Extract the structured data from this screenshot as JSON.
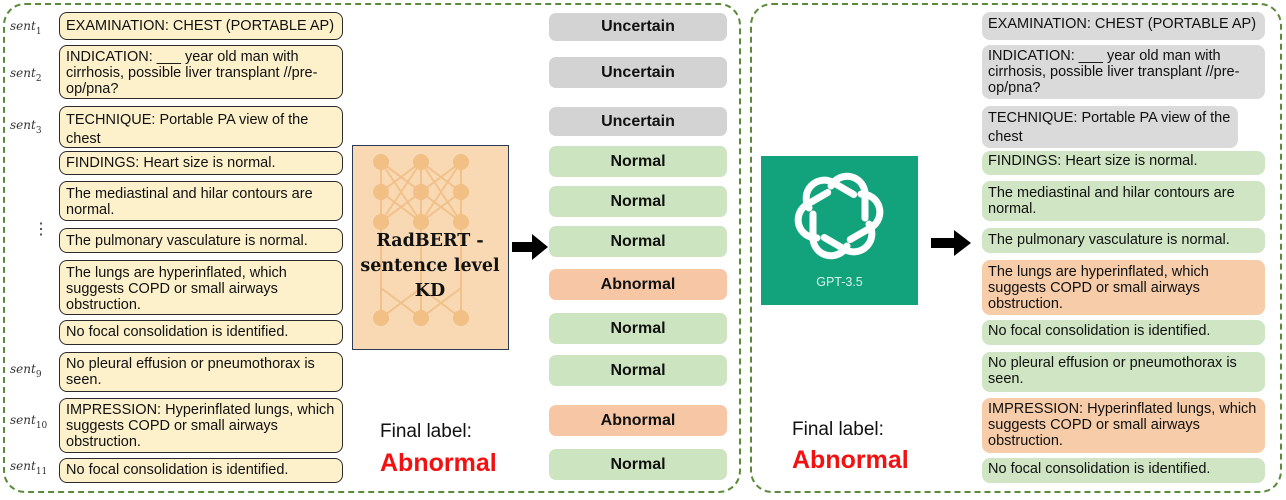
{
  "left_sentences": [
    "EXAMINATION:  CHEST (PORTABLE AP)",
    "INDICATION:  ___ year old man with cirrhosis, possible liver transplant //pre-op/pna?",
    "TECHNIQUE:  Portable PA view of the chest",
    "FINDINGS: Heart size is normal.",
    "The mediastinal and hilar contours are normal.",
    "The pulmonary vasculature is normal.",
    "The lungs are hyperinflated, which suggests COPD or small airways obstruction.",
    "No focal consolidation is identified.",
    "No pleural effusion or pneumothorax is seen.",
    "IMPRESSION: Hyperinflated lungs, which suggests COPD or small airways obstruction.",
    "No focal consolidation is identified."
  ],
  "sentence_ids": [
    {
      "base": "sent",
      "sub": "1"
    },
    {
      "base": "sent",
      "sub": "2"
    },
    {
      "base": "sent",
      "sub": "3"
    },
    {
      "base": "sent",
      "sub": "9"
    },
    {
      "base": "sent",
      "sub": "10"
    },
    {
      "base": "sent",
      "sub": "11"
    }
  ],
  "vertical_dots": "⋮",
  "model_name": "RadBERT - sentence level KD",
  "sentence_labels": [
    "Uncertain",
    "Uncertain",
    "Uncertain",
    "Normal",
    "Normal",
    "Normal",
    "Abnormal",
    "Normal",
    "Normal",
    "Abnormal",
    "Normal"
  ],
  "left_final": {
    "caption": "Final label:",
    "value": "Abnormal"
  },
  "gpt_logo_name": "GPT-3.5",
  "right_sentences": [
    {
      "text": "EXAMINATION:  CHEST (PORTABLE AP)",
      "label": "Uncertain"
    },
    {
      "text": "INDICATION:  ___ year old man with cirrhosis, possible liver transplant //pre-op/pna?",
      "label": "Uncertain"
    },
    {
      "text": "TECHNIQUE:  Portable PA view of the chest",
      "label": "Uncertain"
    },
    {
      "text": "FINDINGS: Heart size is normal.",
      "label": "Normal"
    },
    {
      "text": "The mediastinal and hilar contours are normal.",
      "label": "Normal"
    },
    {
      "text": "The pulmonary vasculature is normal.",
      "label": "Normal"
    },
    {
      "text": "The lungs are hyperinflated, which suggests COPD or small airways obstruction.",
      "label": "Abnormal"
    },
    {
      "text": "No focal consolidation is identified.",
      "label": "Normal"
    },
    {
      "text": "No pleural effusion or pneumothorax is seen.",
      "label": "Normal"
    },
    {
      "text": "IMPRESSION: Hyperinflated lungs, which suggests COPD or small airways obstruction.",
      "label": "Abnormal"
    },
    {
      "text": "No focal consolidation is identified.",
      "label": "Normal"
    }
  ],
  "right_final": {
    "caption": "Final label:",
    "value": "Abnormal"
  },
  "colors": {
    "panel_border": "#5a8a3a",
    "sentence_fill": "#fdf1cc",
    "uncertain": "#d3d3d3",
    "normal": "#cde4c0",
    "abnormal": "#f6c6a5",
    "final_label": "#f21010",
    "gpt_bg": "#12a37d",
    "radbert_bg": "#f8d9b4"
  }
}
